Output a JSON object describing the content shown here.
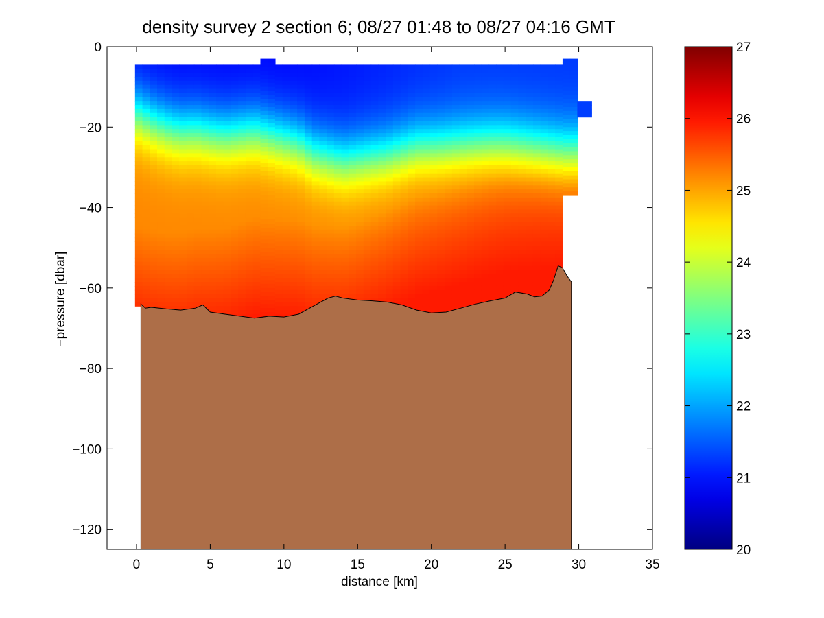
{
  "chart_data": {
    "type": "heatmap",
    "title": "density survey 2 section 6; 08/27 01:48 to 08/27 04:16 GMT",
    "xlabel": "distance [km]",
    "ylabel": "−pressure [dbar]",
    "xlim": [
      -2,
      35
    ],
    "ylim": [
      -125,
      0
    ],
    "xticks": [
      0,
      5,
      10,
      15,
      20,
      25,
      30,
      35
    ],
    "yticks": [
      -120,
      -100,
      -80,
      -60,
      -40,
      -20,
      0
    ],
    "xtick_labels": [
      "0",
      "5",
      "10",
      "15",
      "20",
      "25",
      "30",
      "35"
    ],
    "ytick_labels": [
      "−120",
      "−100",
      "−80",
      "−60",
      "−40",
      "−20",
      "0"
    ],
    "colorbar": {
      "range": [
        20,
        27
      ],
      "ticks": [
        20,
        21,
        22,
        23,
        24,
        25,
        26,
        27
      ],
      "tick_labels": [
        "20",
        "21",
        "22",
        "23",
        "24",
        "25",
        "26",
        "27"
      ],
      "colormap": "jet"
    },
    "section_x_km": [
      0,
      1,
      2,
      3,
      4,
      5,
      6,
      7,
      8,
      9,
      10,
      11,
      12,
      13,
      14,
      15,
      16,
      17,
      18,
      19,
      20,
      21,
      22,
      23,
      24,
      25,
      26,
      27,
      28,
      29,
      30
    ],
    "pycnocline_depth": [
      -16.5,
      -18.5,
      -20,
      -21,
      -20.8,
      -21.5,
      -22,
      -21.5,
      -21,
      -22,
      -23,
      -24,
      -26.5,
      -27.5,
      -28.5,
      -28,
      -27.5,
      -27,
      -26,
      -25,
      -25,
      -24.8,
      -24.5,
      -24.2,
      -24,
      -24,
      -24.5,
      -25,
      -25.5,
      -26,
      -26
    ],
    "upper_layer_density": 20.9,
    "mid_layer_density": 25.2,
    "deep_layer_density": 25.95,
    "bottom_profile": {
      "x": [
        0.3,
        0.6,
        1,
        2,
        3,
        4,
        4.5,
        5,
        6,
        7,
        8,
        9,
        10,
        11,
        12,
        13,
        13.5,
        14,
        15,
        16,
        17,
        18,
        19,
        20,
        21,
        22,
        23,
        24,
        25,
        25.7,
        26.5,
        27,
        27.5,
        28,
        28.3,
        28.6,
        28.9,
        29.2,
        29.5
      ],
      "y": [
        -64,
        -65,
        -64.8,
        -65.2,
        -65.5,
        -65,
        -64.2,
        -66,
        -66.5,
        -67,
        -67.5,
        -67,
        -67.2,
        -66.5,
        -64.5,
        -62.5,
        -62,
        -62.5,
        -63,
        -63.2,
        -63.5,
        -64.2,
        -65.5,
        -66.2,
        -66,
        -65,
        -64,
        -63.2,
        -62.5,
        -61,
        -61.5,
        -62.2,
        -62,
        -60.5,
        -58,
        -54.5,
        -55,
        -57,
        -58.5
      ],
      "fill_color": "#ad6e48"
    }
  }
}
